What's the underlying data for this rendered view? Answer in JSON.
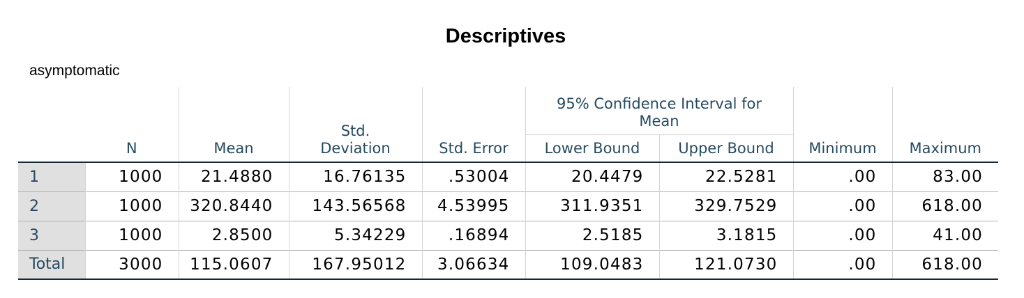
{
  "title": "Descriptives",
  "dependent_variable": "asymptomatic",
  "columns": {
    "n": "N",
    "mean": "Mean",
    "std_deviation_line1": "Std.",
    "std_deviation_line2": "Deviation",
    "std_error": "Std. Error",
    "ci_group_line1": "95% Confidence Interval for",
    "ci_group_line2": "Mean",
    "lower_bound": "Lower Bound",
    "upper_bound": "Upper Bound",
    "minimum": "Minimum",
    "maximum": "Maximum"
  },
  "rows": [
    {
      "label": "1",
      "n": "1000",
      "mean": "21.4880",
      "std_deviation": "16.76135",
      "std_error": ".53004",
      "lower_bound": "20.4479",
      "upper_bound": "22.5281",
      "minimum": ".00",
      "maximum": "83.00"
    },
    {
      "label": "2",
      "n": "1000",
      "mean": "320.8440",
      "std_deviation": "143.56568",
      "std_error": "4.53995",
      "lower_bound": "311.9351",
      "upper_bound": "329.7529",
      "minimum": ".00",
      "maximum": "618.00"
    },
    {
      "label": "3",
      "n": "1000",
      "mean": "2.8500",
      "std_deviation": "5.34229",
      "std_error": ".16894",
      "lower_bound": "2.5185",
      "upper_bound": "3.1815",
      "minimum": ".00",
      "maximum": "41.00"
    },
    {
      "label": "Total",
      "n": "3000",
      "mean": "115.0607",
      "std_deviation": "167.95012",
      "std_error": "3.06634",
      "lower_bound": "109.0483",
      "upper_bound": "121.0730",
      "minimum": ".00",
      "maximum": "618.00"
    }
  ]
}
